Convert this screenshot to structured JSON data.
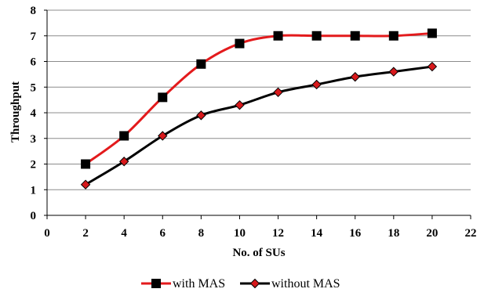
{
  "chart_data": {
    "type": "line",
    "title": "",
    "xlabel": "No. of SUs",
    "ylabel": "Throughput",
    "xlim": [
      0,
      22
    ],
    "ylim": [
      0,
      8
    ],
    "xticks": [
      0,
      2,
      4,
      6,
      8,
      10,
      12,
      14,
      16,
      18,
      20,
      22
    ],
    "yticks": [
      0,
      1,
      2,
      3,
      4,
      5,
      6,
      7,
      8
    ],
    "grid": "horizontal",
    "legend": "bottom",
    "x": [
      2,
      4,
      6,
      8,
      10,
      12,
      14,
      16,
      18,
      20
    ],
    "series": [
      {
        "name": "with MAS",
        "values": [
          2.0,
          3.1,
          4.6,
          5.9,
          6.7,
          7.0,
          7.0,
          7.0,
          7.0,
          7.1
        ],
        "line_color": "#e31a1c",
        "marker": "square",
        "marker_color": "#000000"
      },
      {
        "name": "without MAS",
        "values": [
          1.2,
          2.1,
          3.1,
          3.9,
          4.3,
          4.8,
          5.1,
          5.4,
          5.6,
          5.8
        ],
        "line_color": "#000000",
        "marker": "diamond",
        "marker_color": "#d7191c"
      }
    ]
  }
}
